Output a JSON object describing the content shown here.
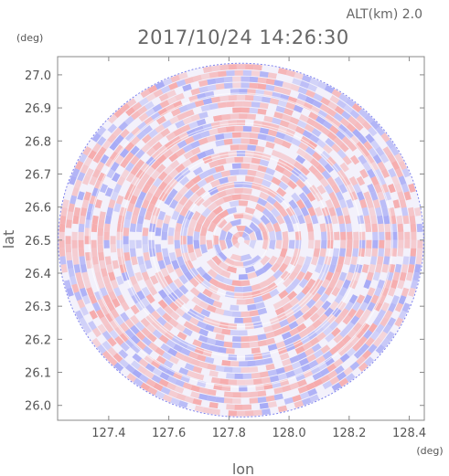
{
  "header": {
    "altitude": "ALT(km) 2.0",
    "timestamp": "2017/10/24 14:26:30"
  },
  "colors": {
    "positive": "#f6a3a3",
    "negative": "#9fa3f5",
    "frame": "#888888",
    "background": "#ffffff"
  },
  "chart_data": {
    "type": "heatmap",
    "title": "2017/10/24 14:26:30",
    "xlabel": "lon",
    "ylabel": "lat",
    "x_unit": "(deg)",
    "y_unit": "(deg)",
    "xlim": [
      127.23,
      128.45
    ],
    "ylim": [
      25.955,
      27.055
    ],
    "x_ticks": [
      "127.4",
      "127.6",
      "127.8",
      "128.0",
      "128.2",
      "128.4"
    ],
    "y_ticks": [
      "27.0",
      "26.9",
      "26.8",
      "26.7",
      "26.6",
      "26.5",
      "26.4",
      "26.3",
      "26.2",
      "26.1",
      "26.0"
    ],
    "center": [
      127.84,
      26.5
    ],
    "radius_lon": 0.608,
    "radius_lat": 0.535,
    "grid": false,
    "colorscale": [
      "negative-blue",
      "zero-white",
      "positive-red"
    ]
  }
}
